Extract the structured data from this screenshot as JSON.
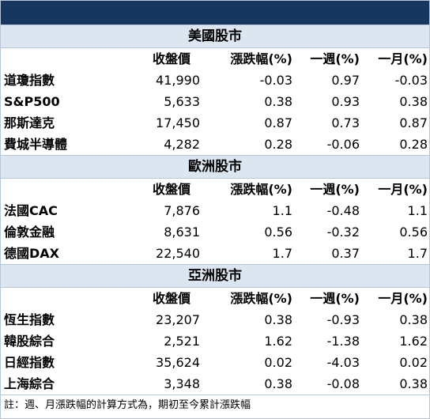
{
  "headers": {
    "close": "收盤價",
    "change": "漲跌幅(%)",
    "week": "一週(%)",
    "month": "一月(%)"
  },
  "sections": [
    {
      "title": "美國股市",
      "rows": [
        {
          "name": "道瓊指數",
          "close": "41,990",
          "change": "-0.03",
          "week": "0.97",
          "month": "-0.03"
        },
        {
          "name": "S&P500",
          "close": "5,633",
          "change": "0.38",
          "week": "0.93",
          "month": "0.38"
        },
        {
          "name": "那斯達克",
          "close": "17,450",
          "change": "0.87",
          "week": "0.73",
          "month": "0.87"
        },
        {
          "name": "費城半導體",
          "close": "4,282",
          "change": "0.28",
          "week": "-0.06",
          "month": "0.28"
        }
      ]
    },
    {
      "title": "歐洲股市",
      "rows": [
        {
          "name": "法國CAC",
          "close": "7,876",
          "change": "1.1",
          "week": "-0.48",
          "month": "1.1"
        },
        {
          "name": "倫敦金融",
          "close": "8,631",
          "change": "0.56",
          "week": "-0.32",
          "month": "0.56"
        },
        {
          "name": "德國DAX",
          "close": "22,540",
          "change": "1.7",
          "week": "0.37",
          "month": "1.7"
        }
      ]
    },
    {
      "title": "亞洲股市",
      "rows": [
        {
          "name": "恆生指數",
          "close": "23,207",
          "change": "0.38",
          "week": "-0.93",
          "month": "0.38"
        },
        {
          "name": "韓股綜合",
          "close": "2,521",
          "change": "1.62",
          "week": "-1.38",
          "month": "1.62"
        },
        {
          "name": "日經指數",
          "close": "35,624",
          "change": "0.02",
          "week": "-4.03",
          "month": "0.02"
        },
        {
          "name": "上海綜合",
          "close": "3,348",
          "change": "0.38",
          "week": "-0.08",
          "month": "0.38"
        }
      ]
    }
  ],
  "note": "註：週、月漲跌幅的計算方式為，期初至今累計漲跌幅",
  "colors": {
    "topbar": "#17375e",
    "section_header": "#dce6f1",
    "border": "#b7c7da"
  }
}
